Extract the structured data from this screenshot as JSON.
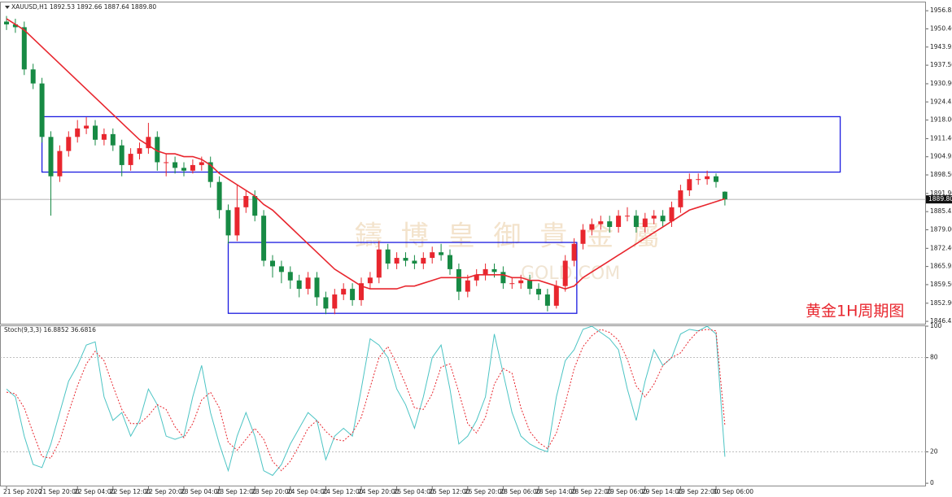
{
  "chart_data": [
    {
      "type": "candlestick",
      "title": "XAUUSD,H1  1892.53 1892.66 1887.64 1889.80",
      "categories": [
        "21 Sep 2020",
        null,
        null,
        null,
        "21 Sep 20:00",
        null,
        null,
        null,
        "22 Sep 04:00",
        null,
        null,
        null,
        "22 Sep 12:00",
        null,
        null,
        null,
        "22 Sep 20:00",
        null,
        null,
        null,
        "23 Sep 04:00",
        null,
        null,
        null,
        "23 Sep 12:00",
        null,
        null,
        null,
        "23 Sep 20:00",
        null,
        null,
        null,
        "24 Sep 04:00",
        null,
        null,
        null,
        "24 Sep 12:00",
        null,
        null,
        null,
        "24 Sep 20:00",
        null,
        null,
        null,
        "25 Sep 04:00",
        null,
        null,
        null,
        "25 Sep 12:00",
        null,
        null,
        null,
        "25 Sep 20:00",
        null,
        null,
        null,
        "28 Sep 06:00",
        null,
        null,
        null,
        "28 Sep 14:00",
        null,
        null,
        null,
        "28 Sep 22:00",
        null,
        null,
        null,
        "29 Sep 06:00",
        null,
        null,
        null,
        "29 Sep 14:00",
        null,
        null,
        null,
        "29 Sep 22:00",
        null,
        null,
        null,
        "30 Sep 06:00",
        null
      ],
      "open": [
        1953,
        1952,
        1951,
        1936,
        1931,
        1912,
        1898,
        1907,
        1912,
        1915,
        1916,
        1911,
        1913,
        1909,
        1902,
        1906,
        1908,
        1912,
        1903,
        1903,
        1901,
        1900,
        1902,
        1903,
        1896,
        1886,
        1877,
        1887,
        1891,
        1884,
        1868,
        1866,
        1864,
        1861,
        1858,
        1862,
        1855,
        1851,
        1856,
        1858,
        1854,
        1860,
        1862,
        1872,
        1867,
        1869,
        1868,
        1867,
        1869,
        1871,
        1870,
        1865,
        1857,
        1861,
        1863,
        1865,
        1864,
        1860,
        1860,
        1861,
        1858,
        1856,
        1852,
        1859,
        1868,
        1874,
        1879,
        1881,
        1882,
        1880,
        1884,
        1884,
        1880,
        1883,
        1884,
        1882,
        1887,
        1893,
        1897,
        1897,
        1898,
        1892.53
      ],
      "high": [
        1955,
        1954,
        1953,
        1938,
        1933,
        1914,
        1909,
        1914,
        1918,
        1919,
        1918,
        1915,
        1915,
        1911,
        1908,
        1910,
        1917,
        1914,
        1906,
        1905,
        1903,
        1904,
        1905,
        1905,
        1898,
        1888,
        1895,
        1893,
        1893,
        1886,
        1870,
        1868,
        1866,
        1863,
        1864,
        1864,
        1857,
        1858,
        1860,
        1860,
        1862,
        1864,
        1875,
        1874,
        1871,
        1871,
        1870,
        1871,
        1873,
        1874,
        1872,
        1867,
        1863,
        1865,
        1867,
        1867,
        1866,
        1862,
        1863,
        1863,
        1860,
        1858,
        1861,
        1870,
        1876,
        1881,
        1883,
        1884,
        1884,
        1886,
        1887,
        1886,
        1885,
        1886,
        1886,
        1889,
        1895,
        1899,
        1899,
        1900,
        1899,
        1892.66
      ],
      "low": [
        1950,
        1949,
        1934,
        1929,
        1910,
        1884,
        1896,
        1905,
        1910,
        1913,
        1909,
        1909,
        1907,
        1898,
        1900,
        1904,
        1906,
        1900,
        1898,
        1899,
        1898,
        1899,
        1900,
        1894,
        1883,
        1874,
        1875,
        1885,
        1882,
        1866,
        1862,
        1860,
        1858,
        1855,
        1856,
        1852,
        1849,
        1849,
        1854,
        1852,
        1852,
        1858,
        1860,
        1865,
        1865,
        1866,
        1865,
        1865,
        1867,
        1868,
        1863,
        1854,
        1855,
        1859,
        1861,
        1862,
        1858,
        1858,
        1858,
        1856,
        1854,
        1850,
        1851,
        1857,
        1866,
        1872,
        1877,
        1879,
        1878,
        1878,
        1882,
        1878,
        1878,
        1881,
        1880,
        1880,
        1885,
        1891,
        1895,
        1895,
        1894,
        1887.64
      ],
      "close": [
        1952,
        1951,
        1936,
        1931,
        1912,
        1898,
        1907,
        1912,
        1915,
        1916,
        1911,
        1913,
        1909,
        1902,
        1906,
        1908,
        1912,
        1903,
        1903,
        1901,
        1900,
        1902,
        1903,
        1896,
        1886,
        1877,
        1887,
        1891,
        1884,
        1868,
        1866,
        1864,
        1861,
        1858,
        1862,
        1855,
        1851,
        1856,
        1858,
        1854,
        1860,
        1862,
        1872,
        1867,
        1869,
        1868,
        1867,
        1869,
        1871,
        1870,
        1865,
        1857,
        1861,
        1863,
        1865,
        1864,
        1860,
        1860,
        1861,
        1858,
        1856,
        1852,
        1859,
        1868,
        1874,
        1879,
        1881,
        1882,
        1880,
        1884,
        1884,
        1880,
        1883,
        1884,
        1882,
        1887,
        1893,
        1897,
        1897,
        1898,
        1896,
        1889.8
      ],
      "up_color": "#e8262e",
      "down_color": "#178a44",
      "overlay": {
        "color": "#e8262e",
        "values": [
          1954,
          1952,
          1950,
          1947,
          1944,
          1941,
          1938,
          1935,
          1932,
          1929,
          1926,
          1923,
          1920,
          1917,
          1914,
          1911,
          1909,
          1907,
          1906,
          1906,
          1905,
          1905,
          1904,
          1902,
          1899,
          1897,
          1895,
          1893,
          1891,
          1888,
          1886,
          1883,
          1880,
          1877,
          1874,
          1871,
          1868,
          1865,
          1863,
          1861,
          1859,
          1858,
          1858,
          1858,
          1858,
          1859,
          1859,
          1860,
          1861,
          1862,
          1862,
          1862,
          1862,
          1863,
          1863,
          1863,
          1863,
          1862,
          1862,
          1861,
          1861,
          1860,
          1859,
          1858,
          1859,
          1862,
          1864,
          1866,
          1868,
          1870,
          1872,
          1874,
          1876,
          1878,
          1880,
          1882,
          1884,
          1886,
          1887,
          1888,
          1889,
          1890
        ]
      },
      "zones": [
        {
          "y": [
            1899.5,
            1919.2
          ],
          "x": [
            4,
            94
          ],
          "color": "#1a1ae0"
        },
        {
          "y": [
            1849.3,
            1874.5
          ],
          "x": [
            25,
            64.3
          ],
          "color": "#1a1ae0"
        }
      ],
      "last_price": {
        "value": 1889.8,
        "label": "1889.80"
      },
      "ylim": [
        1845.6,
        1959.8
      ],
      "yticks": [
        {
          "value": 1956.85,
          "label": "1956.85"
        },
        {
          "value": 1950.4,
          "label": "1950.40"
        },
        {
          "value": 1943.95,
          "label": "1943.95"
        },
        {
          "value": 1937.5,
          "label": "1937.50"
        },
        {
          "value": 1930.9,
          "label": "1930.90"
        },
        {
          "value": 1924.45,
          "label": "1924.45"
        },
        {
          "value": 1918,
          "label": "1918.00"
        },
        {
          "value": 1911.4,
          "label": "1911.40"
        },
        {
          "value": 1904.95,
          "label": "1904.95"
        },
        {
          "value": 1898.5,
          "label": "1898.50"
        },
        {
          "value": 1891.9,
          "label": "1891.90"
        },
        {
          "value": 1885.45,
          "label": "1885.45"
        },
        {
          "value": 1879,
          "label": "1879.00"
        },
        {
          "value": 1872.4,
          "label": "1872.40"
        },
        {
          "value": 1865.95,
          "label": "1865.95"
        },
        {
          "value": 1859.5,
          "label": "1859.50"
        },
        {
          "value": 1852.9,
          "label": "1852.90"
        },
        {
          "value": 1846.45,
          "label": "1846.45"
        }
      ],
      "annotation": "黄金1H周期图",
      "watermark": "鑄 博 皇 御 貴 金 屬",
      "watermark_sub": "GOLD.COM"
    },
    {
      "type": "line",
      "title": "Stoch(9,3,3) 16.8852 36.6816",
      "series": [
        {
          "color": "#4cc4c4",
          "dash": false,
          "values": [
            60,
            55,
            30,
            12,
            10,
            25,
            45,
            65,
            75,
            88,
            90,
            55,
            40,
            45,
            30,
            40,
            60,
            50,
            30,
            28,
            30,
            55,
            75,
            45,
            25,
            8,
            30,
            45,
            30,
            8,
            5,
            12,
            25,
            35,
            45,
            40,
            15,
            30,
            35,
            30,
            60,
            92,
            88,
            80,
            60,
            50,
            35,
            55,
            80,
            88,
            60,
            25,
            30,
            40,
            55,
            95,
            70,
            45,
            30,
            25,
            22,
            20,
            55,
            78,
            85,
            98,
            100,
            96,
            92,
            85,
            60,
            40,
            65,
            85,
            75,
            80,
            95,
            98,
            97,
            100,
            95,
            16.8852
          ]
        },
        {
          "color": "#e8262e",
          "dash": true,
          "values": [
            58,
            57,
            48,
            32,
            17,
            16,
            27,
            45,
            62,
            76,
            84,
            78,
            62,
            47,
            38,
            38,
            43,
            50,
            47,
            36,
            29,
            38,
            53,
            58,
            48,
            26,
            21,
            28,
            35,
            28,
            14,
            8,
            14,
            24,
            35,
            40,
            33,
            28,
            27,
            32,
            42,
            61,
            80,
            87,
            76,
            63,
            48,
            47,
            57,
            74,
            76,
            58,
            38,
            32,
            42,
            63,
            73,
            70,
            48,
            33,
            26,
            22,
            32,
            51,
            73,
            87,
            94,
            98,
            96,
            91,
            79,
            62,
            55,
            63,
            75,
            80,
            83,
            91,
            97,
            98,
            97,
            36.6816
          ]
        }
      ],
      "ylim": [
        -1.5,
        100
      ],
      "yticks": [
        0,
        20,
        80,
        100
      ],
      "levels": [
        20,
        80
      ]
    }
  ]
}
